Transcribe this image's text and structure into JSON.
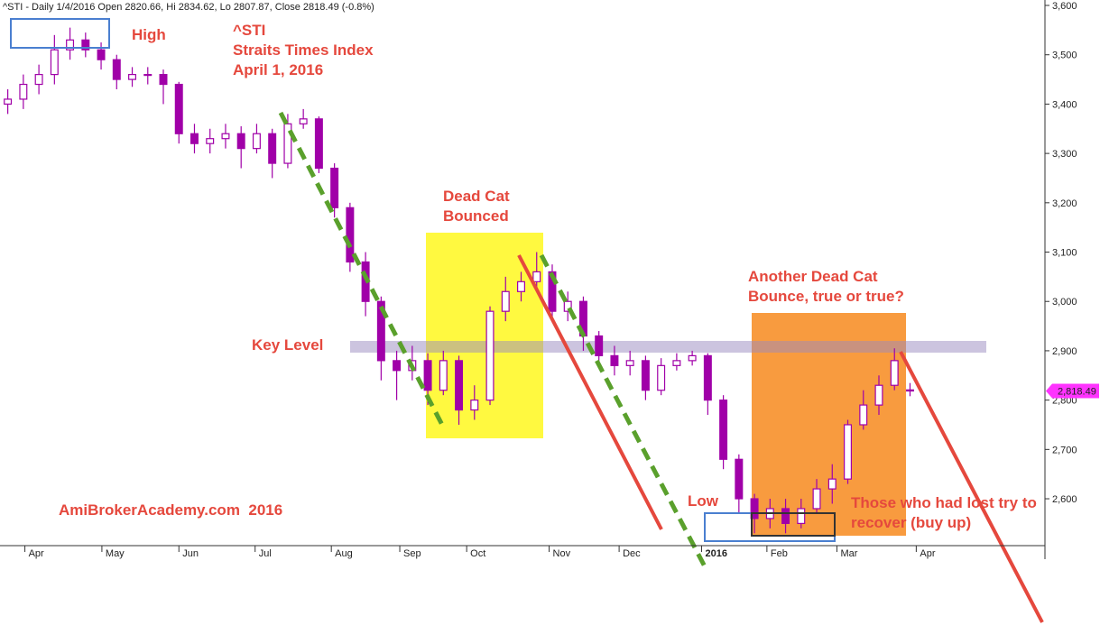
{
  "chart_data": {
    "type": "candlestick",
    "title": "^STI - Daily 1/4/2016 Open 2820.66, Hi 2834.62, Lo 2807.87, Close 2818.49 (-0.8%)",
    "color": "#a000a8",
    "open": [
      3400,
      3410,
      3440,
      3460,
      3510,
      3530,
      3510,
      3490,
      3450,
      3460,
      3460,
      3440,
      3340,
      3320,
      3330,
      3340,
      3310,
      3340,
      3280,
      3360,
      3370,
      3270,
      3190,
      3080,
      3000,
      2880,
      2860,
      2880,
      2820,
      2880,
      2780,
      2800,
      2980,
      3020,
      3040,
      3060,
      2980,
      3000,
      2930,
      2890,
      2870,
      2880,
      2820,
      2870,
      2880,
      2890,
      2800,
      2680,
      2600,
      2560,
      2580,
      2550,
      2580,
      2620,
      2640,
      2750,
      2790,
      2830,
      2820.66
    ],
    "high": [
      3430,
      3460,
      3480,
      3540,
      3555,
      3545,
      3525,
      3500,
      3475,
      3475,
      3470,
      3445,
      3360,
      3350,
      3360,
      3355,
      3360,
      3350,
      3380,
      3390,
      3375,
      3280,
      3200,
      3100,
      3010,
      2900,
      2910,
      2895,
      2900,
      2890,
      2830,
      2990,
      3050,
      3060,
      3100,
      3075,
      3020,
      3010,
      2940,
      2910,
      2900,
      2890,
      2885,
      2895,
      2900,
      2895,
      2810,
      2690,
      2610,
      2600,
      2600,
      2600,
      2640,
      2670,
      2760,
      2820,
      2850,
      2905,
      2834.62
    ],
    "low": [
      3380,
      3390,
      3420,
      3440,
      3490,
      3495,
      3470,
      3430,
      3435,
      3440,
      3400,
      3320,
      3300,
      3300,
      3310,
      3270,
      3300,
      3250,
      3270,
      3350,
      3260,
      3170,
      3060,
      2970,
      2840,
      2800,
      2840,
      2790,
      2810,
      2750,
      2760,
      2790,
      2960,
      3000,
      3030,
      2960,
      2960,
      2900,
      2870,
      2850,
      2850,
      2800,
      2810,
      2860,
      2870,
      2770,
      2660,
      2570,
      2530,
      2540,
      2530,
      2540,
      2570,
      2590,
      2630,
      2740,
      2770,
      2820,
      2807.87
    ],
    "close": [
      3410,
      3440,
      3460,
      3510,
      3530,
      3510,
      3490,
      3450,
      3460,
      3460,
      3440,
      3340,
      3320,
      3330,
      3340,
      3310,
      3340,
      3280,
      3360,
      3370,
      3270,
      3190,
      3080,
      3000,
      2880,
      2860,
      2880,
      2820,
      2880,
      2780,
      2800,
      2980,
      3020,
      3040,
      3060,
      2980,
      3000,
      2930,
      2890,
      2870,
      2880,
      2820,
      2870,
      2880,
      2890,
      2800,
      2680,
      2600,
      2560,
      2580,
      2550,
      2580,
      2620,
      2640,
      2750,
      2790,
      2830,
      2880,
      2818.49
    ],
    "xlim": [
      -0.5,
      66.5
    ],
    "xticks": [
      {
        "value": 1.1,
        "label": "Apr"
      },
      {
        "value": 6.05,
        "label": "May"
      },
      {
        "value": 11,
        "label": "Jun"
      },
      {
        "value": 15.9,
        "label": "Jul"
      },
      {
        "value": 20.8,
        "label": "Aug"
      },
      {
        "value": 25.2,
        "label": "Sep"
      },
      {
        "value": 29.5,
        "label": "Oct"
      },
      {
        "value": 34.8,
        "label": "Nov"
      },
      {
        "value": 39.3,
        "label": "Dec"
      },
      {
        "value": 44.6,
        "label": "2016"
      },
      {
        "value": 48.8,
        "label": "Feb"
      },
      {
        "value": 53.3,
        "label": "Mar"
      },
      {
        "value": 58.4,
        "label": "Apr"
      }
    ],
    "ylim": [
      2505,
      3611
    ],
    "yticks": [
      {
        "value": 2600,
        "label": "2,600"
      },
      {
        "value": 2700,
        "label": "2,700"
      },
      {
        "value": 2800,
        "label": "2,800"
      },
      {
        "value": 2900,
        "label": "2,900"
      },
      {
        "value": 3000,
        "label": "3,000"
      },
      {
        "value": 3100,
        "label": "3,100"
      },
      {
        "value": 3200,
        "label": "3,200"
      },
      {
        "value": 3300,
        "label": "3,300"
      },
      {
        "value": 3400,
        "label": "3,400"
      },
      {
        "value": 3500,
        "label": "3,500"
      },
      {
        "value": 3600,
        "label": "3,600"
      }
    ],
    "last_label": {
      "value": 2818.49,
      "label": "2,818.49"
    },
    "annotations": [
      "High",
      "^STI",
      "Straits Times Index",
      "April 1, 2016",
      "Dead Cat",
      "Bounced",
      "Key Level",
      "Another Dead Cat",
      "Bounce, true or true?",
      "Low",
      "Those who had lost try to",
      "recover (buy up)",
      "AmiBrokerAcademy.com  2016"
    ]
  }
}
